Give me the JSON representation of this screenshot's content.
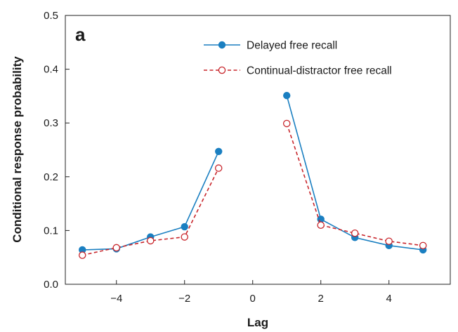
{
  "chart_data": {
    "type": "line",
    "panel_label": "a",
    "xlabel": "Lag",
    "ylabel": "Conditional response probability",
    "xlim": [
      -5.5,
      5.8
    ],
    "ylim": [
      0,
      0.5
    ],
    "xticks": [
      -4,
      -2,
      0,
      2,
      4
    ],
    "xtick_labels": [
      "−4",
      "−2",
      "0",
      "2",
      "4"
    ],
    "yticks": [
      0,
      0.1,
      0.2,
      0.3,
      0.4,
      0.5
    ],
    "ytick_labels": [
      "0.0",
      "0.1",
      "0.2",
      "0.3",
      "0.4",
      "0.5"
    ],
    "grid": false,
    "legend_position": "top-right",
    "series": [
      {
        "name": "Delayed free recall",
        "color": "#1a7fc1",
        "line_style": "solid",
        "marker": "filled-circle",
        "segments": [
          {
            "x": [
              -5,
              -4,
              -3,
              -2,
              -1
            ],
            "y": [
              0.064,
              0.066,
              0.088,
              0.107,
              0.247
            ]
          },
          {
            "x": [
              1,
              2,
              3,
              4,
              5
            ],
            "y": [
              0.351,
              0.121,
              0.087,
              0.072,
              0.064
            ]
          }
        ]
      },
      {
        "name": "Continual-distractor free recall",
        "color": "#c8262c",
        "line_style": "dashed",
        "marker": "open-circle",
        "segments": [
          {
            "x": [
              -5,
              -4,
              -3,
              -2,
              -1
            ],
            "y": [
              0.054,
              0.068,
              0.081,
              0.088,
              0.216
            ]
          },
          {
            "x": [
              1,
              2,
              3,
              4,
              5
            ],
            "y": [
              0.299,
              0.11,
              0.095,
              0.08,
              0.072
            ]
          }
        ]
      }
    ]
  }
}
